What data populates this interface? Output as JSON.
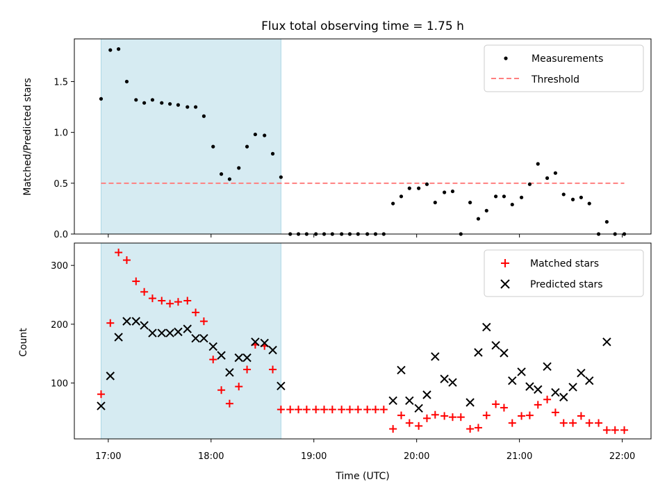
{
  "colors": {
    "shade": "#add8e6",
    "measurement": "#000000",
    "threshold": "#ff7f7f",
    "matched": "#ff0000",
    "predicted": "#000000"
  },
  "chart_data": [
    {
      "type": "scatter",
      "title": "Flux total observing time = 1.75 h",
      "xlabel": "",
      "ylabel": "Matched/Predicted stars",
      "xlim": [
        16.67,
        22.28
      ],
      "ylim": [
        0,
        1.92
      ],
      "yticks": [
        0.0,
        0.5,
        1.0,
        1.5
      ],
      "ytick_labels": [
        "0.0",
        "0.5",
        "1.0",
        "1.5"
      ],
      "xticks": [
        17,
        18,
        19,
        20,
        21,
        22
      ],
      "xtick_labels": [
        "17:00",
        "18:00",
        "19:00",
        "20:00",
        "21:00",
        "22:00"
      ],
      "shaded_x_range": [
        16.93,
        18.68
      ],
      "threshold": 0.5,
      "legend": {
        "placement": "top-right",
        "entries": [
          "Measurements",
          "Threshold"
        ]
      },
      "series": [
        {
          "name": "Measurements",
          "x": [
            16.93,
            17.02,
            17.1,
            17.18,
            17.27,
            17.35,
            17.43,
            17.52,
            17.6,
            17.68,
            17.77,
            17.85,
            17.93,
            18.02,
            18.1,
            18.18,
            18.27,
            18.35,
            18.43,
            18.52,
            18.6,
            18.68,
            18.77,
            18.85,
            18.93,
            19.02,
            19.1,
            19.18,
            19.27,
            19.35,
            19.43,
            19.52,
            19.6,
            19.68,
            19.77,
            19.85,
            19.93,
            20.02,
            20.1,
            20.18,
            20.27,
            20.35,
            20.43,
            20.52,
            20.6,
            20.68,
            20.77,
            20.85,
            20.93,
            21.02,
            21.1,
            21.18,
            21.27,
            21.35,
            21.43,
            21.52,
            21.6,
            21.68,
            21.77,
            21.85,
            21.93,
            22.02
          ],
          "values": [
            1.33,
            1.81,
            1.82,
            1.5,
            1.32,
            1.29,
            1.32,
            1.29,
            1.28,
            1.27,
            1.25,
            1.25,
            1.16,
            0.86,
            0.59,
            0.54,
            0.65,
            0.86,
            0.98,
            0.97,
            0.79,
            0.56,
            0,
            0,
            0,
            0,
            0,
            0,
            0,
            0,
            0,
            0,
            0,
            0,
            0.3,
            0.37,
            0.45,
            0.45,
            0.49,
            0.31,
            0.41,
            0.42,
            0,
            0.31,
            0.15,
            0.23,
            0.37,
            0.37,
            0.29,
            0.36,
            0.49,
            0.69,
            0.55,
            0.6,
            0.39,
            0.34,
            0.36,
            0.3,
            0,
            0.12,
            0,
            0
          ]
        }
      ]
    },
    {
      "type": "scatter",
      "title": "",
      "xlabel": "Time (UTC)",
      "ylabel": "Count",
      "xlim": [
        16.67,
        22.28
      ],
      "ylim": [
        5,
        338
      ],
      "yticks": [
        100,
        200,
        300
      ],
      "ytick_labels": [
        "100",
        "200",
        "300"
      ],
      "xticks": [
        17,
        18,
        19,
        20,
        21,
        22
      ],
      "xtick_labels": [
        "17:00",
        "18:00",
        "19:00",
        "20:00",
        "21:00",
        "22:00"
      ],
      "shaded_x_range": [
        16.93,
        18.68
      ],
      "legend": {
        "placement": "top-right",
        "entries": [
          "Matched stars",
          "Predicted stars"
        ]
      },
      "x": [
        16.93,
        17.02,
        17.1,
        17.18,
        17.27,
        17.35,
        17.43,
        17.52,
        17.6,
        17.68,
        17.77,
        17.85,
        17.93,
        18.02,
        18.1,
        18.18,
        18.27,
        18.35,
        18.43,
        18.52,
        18.6,
        18.68,
        18.77,
        18.85,
        18.93,
        19.02,
        19.1,
        19.18,
        19.27,
        19.35,
        19.43,
        19.52,
        19.6,
        19.68,
        19.77,
        19.85,
        19.93,
        20.02,
        20.1,
        20.18,
        20.27,
        20.35,
        20.43,
        20.52,
        20.6,
        20.68,
        20.77,
        20.85,
        20.93,
        21.02,
        21.1,
        21.18,
        21.27,
        21.35,
        21.43,
        21.52,
        21.6,
        21.68,
        21.77,
        21.85,
        21.93,
        22.02
      ],
      "series": [
        {
          "name": "Matched stars",
          "marker": "+",
          "values": [
            81,
            202,
            322,
            309,
            273,
            255,
            244,
            240,
            235,
            238,
            240,
            220,
            205,
            140,
            88,
            65,
            94,
            123,
            165,
            163,
            123,
            55,
            55,
            55,
            55,
            55,
            55,
            55,
            55,
            55,
            55,
            55,
            55,
            55,
            22,
            45,
            32,
            27,
            40,
            46,
            44,
            42,
            42,
            22,
            24,
            45,
            64,
            58,
            32,
            44,
            45,
            63,
            72,
            50,
            32,
            32,
            44,
            32,
            32,
            20,
            20,
            20
          ]
        },
        {
          "name": "Predicted stars",
          "marker": "x",
          "x": [
            16.93,
            17.02,
            17.1,
            17.18,
            17.27,
            17.35,
            17.43,
            17.52,
            17.6,
            17.68,
            17.77,
            17.85,
            17.93,
            18.02,
            18.1,
            18.18,
            18.27,
            18.35,
            18.43,
            18.52,
            18.6,
            18.68,
            19.77,
            19.85,
            19.93,
            20.02,
            20.1,
            20.18,
            20.27,
            20.35,
            20.52,
            20.6,
            20.68,
            20.77,
            20.85,
            20.93,
            21.02,
            21.1,
            21.18,
            21.27,
            21.35,
            21.43,
            21.52,
            21.6,
            21.68,
            21.85
          ],
          "values": [
            61,
            112,
            178,
            205,
            205,
            198,
            185,
            185,
            185,
            187,
            192,
            176,
            176,
            162,
            147,
            118,
            143,
            143,
            170,
            168,
            156,
            95,
            70,
            122,
            70,
            57,
            80,
            145,
            107,
            101,
            67,
            152,
            195,
            164,
            151,
            104,
            119,
            94,
            89,
            128,
            84,
            76,
            93,
            117,
            104,
            170
          ]
        }
      ]
    }
  ]
}
